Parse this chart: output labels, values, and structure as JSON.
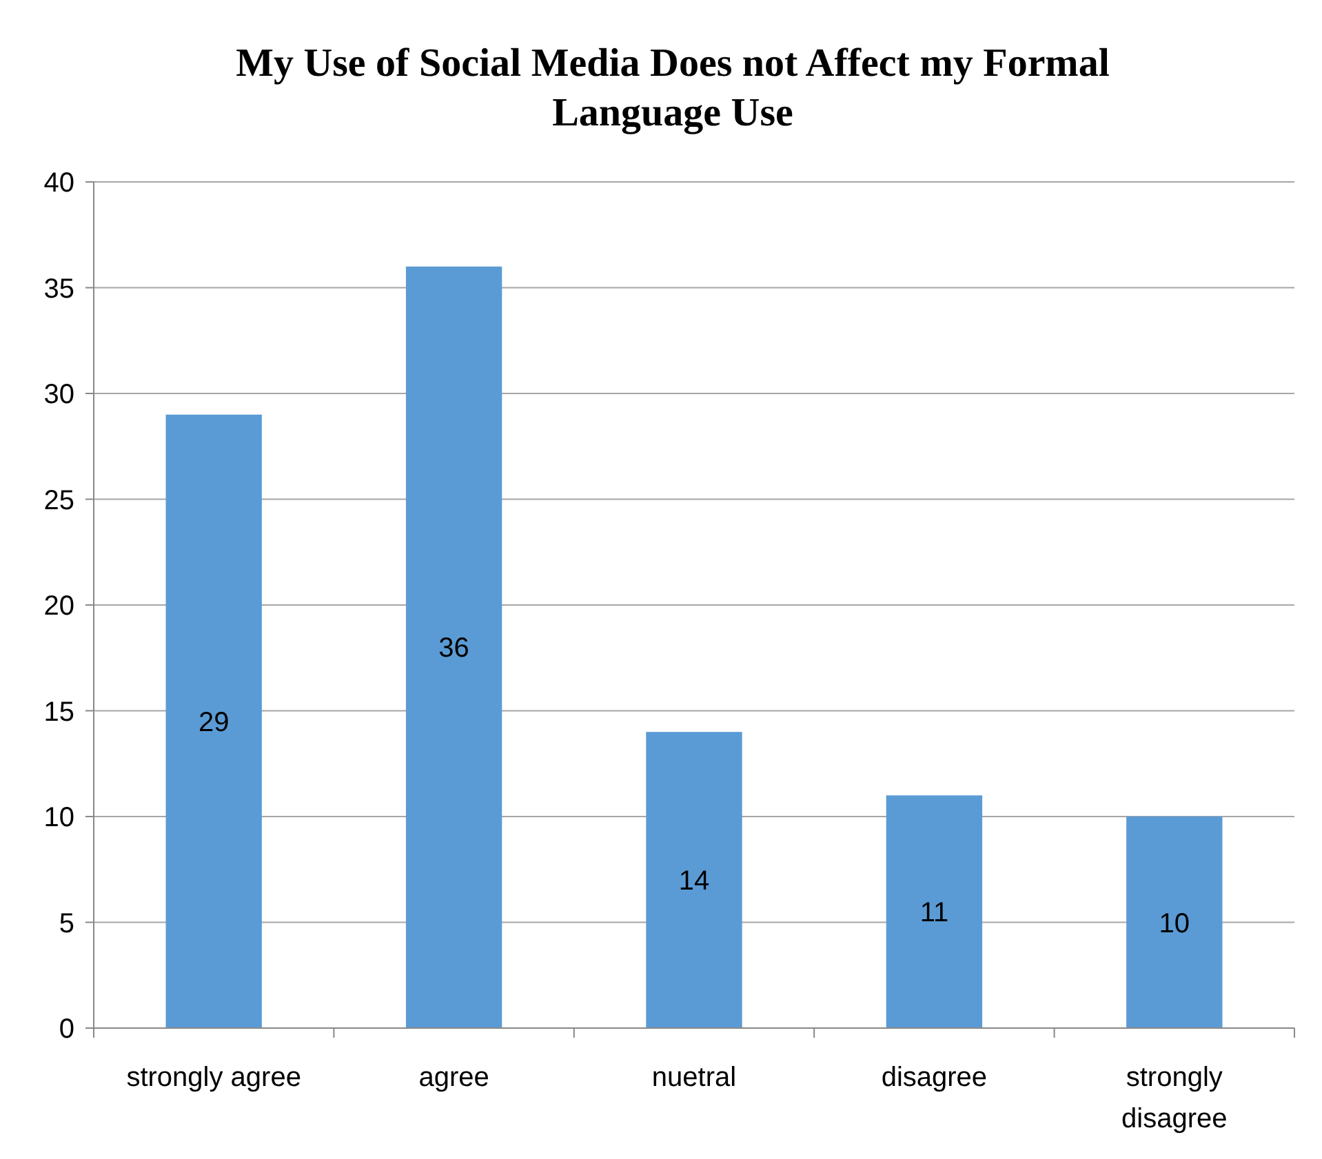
{
  "chart_data": {
    "type": "bar",
    "title": "My Use of Social Media Does not Affect my Formal Language Use",
    "categories": [
      "strongly agree",
      "agree",
      "nuetral",
      "disagree",
      "strongly disagree"
    ],
    "values": [
      29,
      36,
      14,
      11,
      10
    ],
    "color": "#5b9bd5",
    "ylim": [
      0,
      40
    ],
    "yticks": [
      0,
      5,
      10,
      15,
      20,
      25,
      30,
      35,
      40
    ],
    "grid": "y",
    "data_labels": true
  }
}
